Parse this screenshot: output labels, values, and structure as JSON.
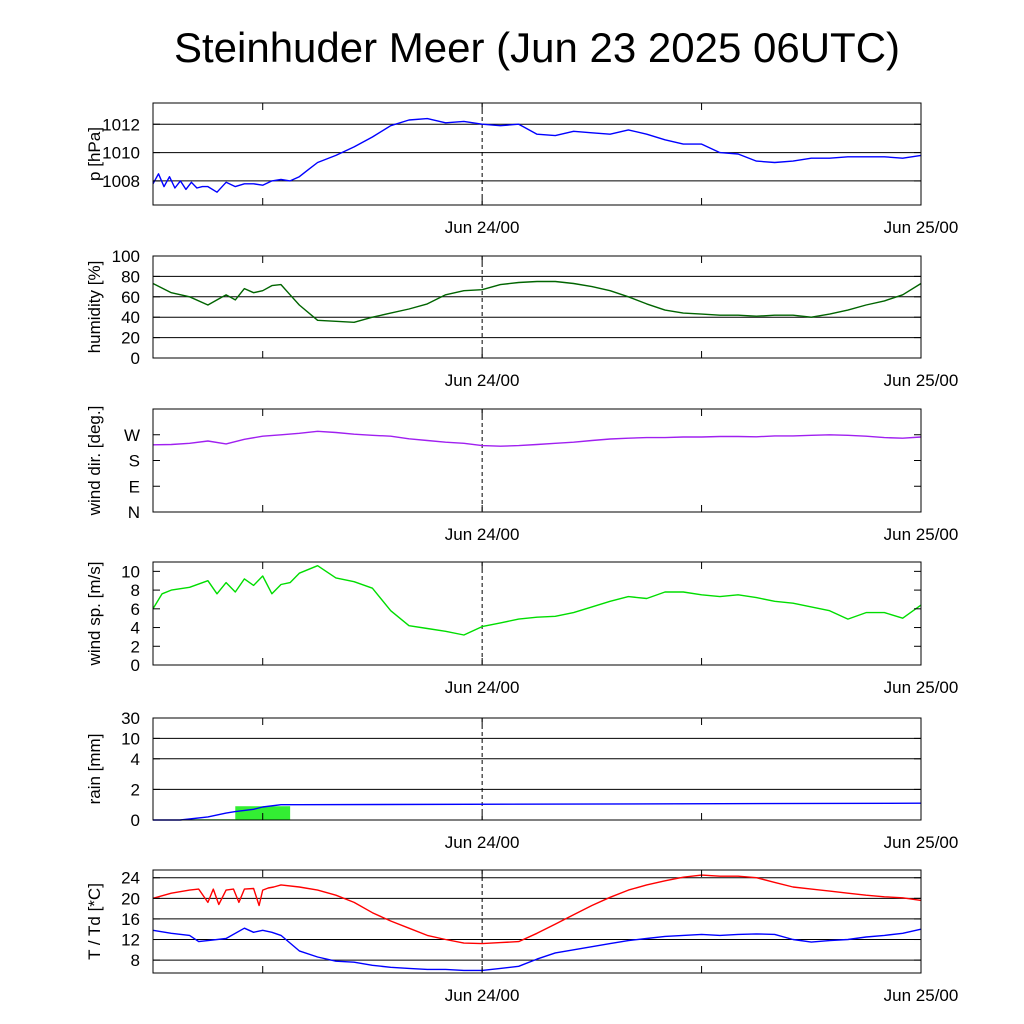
{
  "title": "Steinhuder Meer (Jun 23 2025 06UTC)",
  "x_tick_labels": [
    "Jun 24/00",
    "Jun 25/00"
  ],
  "chart_data": [
    {
      "type": "line",
      "id": "pressure",
      "ylabel": "p [hPa]",
      "ylim": [
        1006.3,
        1013.5
      ],
      "yticks": [
        1008,
        1010,
        1012
      ],
      "ytick_labels": [
        "1008",
        "1010",
        "1012"
      ],
      "gridlines": [
        1008,
        1010,
        1012
      ],
      "x_hours": [
        0,
        42
      ],
      "series": [
        {
          "color": "#0000ff",
          "x": [
            0,
            0.3,
            0.6,
            0.9,
            1.2,
            1.5,
            1.8,
            2.1,
            2.4,
            2.7,
            3,
            3.5,
            4,
            4.5,
            5,
            5.5,
            6,
            6.5,
            7,
            7.5,
            8,
            8.5,
            9,
            10,
            11,
            12,
            13,
            14,
            15,
            16,
            17,
            18,
            19,
            20,
            21,
            22,
            23,
            24,
            25,
            26,
            27,
            28,
            29,
            30,
            31,
            32,
            33,
            34,
            35,
            36,
            37,
            38,
            39,
            40,
            41,
            42
          ],
          "values": [
            1007.8,
            1008.5,
            1007.6,
            1008.3,
            1007.5,
            1008,
            1007.4,
            1007.9,
            1007.5,
            1007.6,
            1007.6,
            1007.2,
            1007.9,
            1007.6,
            1007.8,
            1007.8,
            1007.7,
            1008.0,
            1008.1,
            1008.0,
            1008.3,
            1008.8,
            1009.3,
            1009.8,
            1010.4,
            1011.1,
            1011.9,
            1012.3,
            1012.4,
            1012.1,
            1012.2,
            1012.0,
            1011.9,
            1012.0,
            1011.3,
            1011.2,
            1011.5,
            1011.4,
            1011.3,
            1011.6,
            1011.3,
            1010.9,
            1010.6,
            1010.6,
            1010.0,
            1009.9,
            1009.4,
            1009.3,
            1009.4,
            1009.6,
            1009.6,
            1009.7,
            1009.7,
            1009.7,
            1009.6,
            1009.8
          ]
        }
      ]
    },
    {
      "type": "line",
      "id": "humidity",
      "ylabel": "humidity [%]",
      "ylim": [
        0,
        100
      ],
      "yticks": [
        0,
        20,
        40,
        60,
        80,
        100
      ],
      "ytick_labels": [
        "0",
        "20",
        "40",
        "60",
        "80",
        "100"
      ],
      "gridlines": [
        20,
        40,
        60,
        80
      ],
      "x_hours": [
        0,
        42
      ],
      "series": [
        {
          "color": "#006400",
          "x": [
            0,
            1,
            2,
            3,
            3.5,
            4,
            4.5,
            5,
            5.5,
            6,
            6.5,
            7,
            7.5,
            8,
            9,
            10,
            11,
            12,
            13,
            14,
            15,
            16,
            17,
            18,
            19,
            20,
            21,
            22,
            23,
            24,
            25,
            26,
            27,
            28,
            29,
            30,
            31,
            32,
            33,
            34,
            35,
            36,
            37,
            38,
            39,
            40,
            41,
            42
          ],
          "values": [
            73,
            64,
            60,
            52,
            57,
            62,
            57,
            68,
            64,
            66,
            71,
            72,
            62,
            52,
            37,
            36,
            35,
            40,
            44,
            48,
            53,
            62,
            66,
            67,
            72,
            74,
            75,
            75,
            73,
            70,
            66,
            60,
            53,
            47,
            44,
            43,
            42,
            42,
            41,
            42,
            42,
            40,
            43,
            47,
            52,
            56,
            62,
            73
          ]
        }
      ]
    },
    {
      "type": "line",
      "id": "wind_direction",
      "ylabel": "wind dir. [deg.]",
      "ylim": [
        0,
        360
      ],
      "yticks": [
        0,
        90,
        180,
        270
      ],
      "ytick_labels": [
        "N",
        "E",
        "S",
        "W"
      ],
      "gridlines": [],
      "x_hours": [
        0,
        42
      ],
      "series": [
        {
          "color": "#a020f0",
          "x": [
            0,
            1,
            2,
            3,
            4,
            5,
            6,
            7,
            8,
            9,
            10,
            11,
            12,
            13,
            14,
            15,
            16,
            17,
            18,
            19,
            20,
            21,
            22,
            23,
            24,
            25,
            26,
            27,
            28,
            29,
            30,
            31,
            32,
            33,
            34,
            35,
            36,
            37,
            38,
            39,
            40,
            41,
            42
          ],
          "values": [
            235,
            236,
            240,
            248,
            238,
            254,
            265,
            270,
            275,
            282,
            278,
            272,
            268,
            265,
            256,
            250,
            244,
            240,
            232,
            230,
            232,
            236,
            240,
            244,
            250,
            255,
            258,
            260,
            260,
            262,
            262,
            264,
            264,
            263,
            266,
            266,
            268,
            270,
            268,
            265,
            260,
            258,
            262
          ]
        }
      ]
    },
    {
      "type": "line",
      "id": "wind_speed",
      "ylabel": "wind sp. [m/s]",
      "ylim": [
        0,
        11
      ],
      "yticks": [
        0,
        2,
        4,
        6,
        8,
        10
      ],
      "ytick_labels": [
        "0",
        "2",
        "4",
        "6",
        "8",
        "10"
      ],
      "gridlines": [],
      "x_hours": [
        0,
        42
      ],
      "series": [
        {
          "color": "#00dd00",
          "x": [
            0,
            0.5,
            1,
            2,
            3,
            3.5,
            4,
            4.5,
            5,
            5.5,
            6,
            6.5,
            7,
            7.5,
            8,
            9,
            10,
            11,
            12,
            13,
            14,
            15,
            16,
            17,
            18,
            19,
            20,
            21,
            22,
            23,
            24,
            25,
            26,
            27,
            28,
            29,
            30,
            31,
            32,
            33,
            34,
            35,
            36,
            37,
            38,
            39,
            40,
            41,
            42
          ],
          "values": [
            6,
            7.6,
            8.0,
            8.3,
            9.0,
            7.6,
            8.8,
            7.8,
            9.2,
            8.5,
            9.5,
            7.6,
            8.6,
            8.8,
            9.8,
            10.6,
            9.3,
            8.9,
            8.2,
            5.8,
            4.2,
            3.9,
            3.6,
            3.2,
            4.1,
            4.5,
            4.9,
            5.1,
            5.2,
            5.6,
            6.2,
            6.8,
            7.3,
            7.1,
            7.8,
            7.8,
            7.5,
            7.3,
            7.5,
            7.2,
            6.8,
            6.6,
            6.2,
            5.8,
            4.9,
            5.6,
            5.6,
            5.0,
            6.4
          ]
        }
      ]
    },
    {
      "type": "bar+line",
      "id": "rain",
      "ylabel": "rain [mm]",
      "ylim": [
        0,
        30
      ],
      "yticks": [
        0,
        2,
        4,
        10,
        30
      ],
      "ytick_labels": [
        "0",
        "2",
        "4",
        "10",
        "30"
      ],
      "gridlines": [
        2,
        4,
        10,
        30
      ],
      "x_hours": [
        0,
        42
      ],
      "bars": {
        "color": "#33ee33",
        "intervals": [
          [
            1.5,
            4.5,
            0.05
          ],
          [
            4.5,
            7.5,
            0.9
          ]
        ]
      },
      "series": [
        {
          "color": "#0000ff",
          "x": [
            0,
            1.5,
            3,
            4,
            4.5,
            5.5,
            6,
            7,
            8,
            42
          ],
          "values": [
            0,
            0,
            0.2,
            0.45,
            0.55,
            0.7,
            0.85,
            1.0,
            1.0,
            1.1
          ]
        }
      ]
    },
    {
      "type": "line",
      "id": "temperature",
      "ylabel": "T / Td [*C]",
      "ylim": [
        5.5,
        25.5
      ],
      "yticks": [
        8,
        12,
        16,
        20,
        24
      ],
      "ytick_labels": [
        "8",
        "12",
        "16",
        "20",
        "24"
      ],
      "gridlines": [
        8,
        12,
        16,
        20,
        24
      ],
      "x_hours": [
        0,
        42
      ],
      "series": [
        {
          "color": "#ff0000",
          "x": [
            0,
            1,
            2,
            2.5,
            3,
            3.3,
            3.6,
            4,
            4.4,
            4.7,
            5,
            5.5,
            5.8,
            6,
            6.3,
            6.6,
            7,
            8,
            9,
            10,
            11,
            12,
            13,
            14,
            15,
            16,
            17,
            18,
            19,
            20,
            21,
            22,
            23,
            24,
            25,
            26,
            27,
            28,
            29,
            30,
            31,
            32,
            33,
            34,
            35,
            36,
            37,
            38,
            39,
            40,
            41,
            42
          ],
          "values": [
            20,
            21,
            21.6,
            21.8,
            19.2,
            21.8,
            18.8,
            21.6,
            21.8,
            19.2,
            21.8,
            21.9,
            18.6,
            21.6,
            22,
            22.2,
            22.6,
            22.2,
            21.6,
            20.6,
            19.2,
            17.2,
            15.6,
            14.2,
            12.8,
            12.0,
            11.3,
            11.2,
            11.4,
            11.6,
            13.2,
            15.0,
            16.8,
            18.6,
            20.2,
            21.6,
            22.6,
            23.4,
            24.1,
            24.5,
            24.3,
            24.3,
            24.0,
            23.1,
            22.2,
            21.8,
            21.4,
            21.0,
            20.6,
            20.3,
            20.1,
            19.6
          ]
        },
        {
          "color": "#0000ff",
          "x": [
            0,
            1,
            2,
            2.5,
            3,
            4,
            5,
            5.5,
            6,
            6.5,
            7,
            8,
            9,
            10,
            11,
            12,
            13,
            14,
            15,
            16,
            17,
            18,
            19,
            20,
            21,
            22,
            23,
            24,
            25,
            26,
            27,
            28,
            29,
            30,
            31,
            32,
            33,
            34,
            35,
            36,
            37,
            38,
            39,
            40,
            41,
            42
          ],
          "values": [
            13.8,
            13.2,
            12.8,
            11.6,
            11.8,
            12.2,
            14.2,
            13.4,
            13.8,
            13.4,
            12.8,
            9.8,
            8.6,
            7.8,
            7.6,
            7.0,
            6.6,
            6.4,
            6.2,
            6.2,
            6.0,
            6.0,
            6.4,
            6.8,
            8.2,
            9.4,
            10.0,
            10.6,
            11.2,
            11.8,
            12.2,
            12.6,
            12.8,
            13.0,
            12.8,
            13.0,
            13.1,
            13.0,
            12.0,
            11.5,
            11.8,
            12.0,
            12.5,
            12.8,
            13.2,
            14.0
          ]
        }
      ]
    }
  ]
}
